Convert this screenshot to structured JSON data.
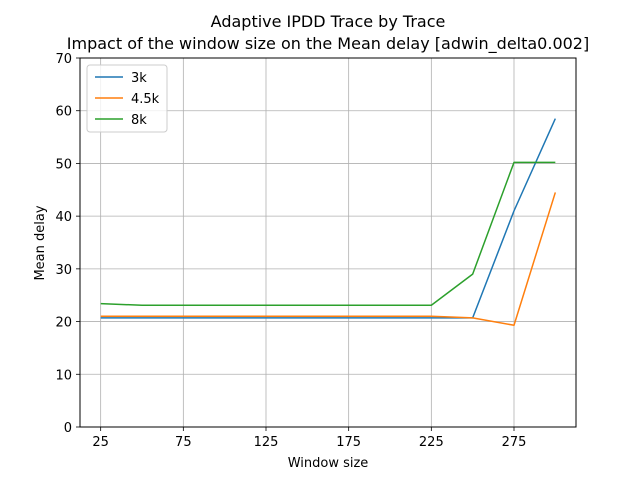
{
  "chart_data": {
    "type": "line",
    "title": "Adaptive IPDD Trace by Trace",
    "subtitle": "Impact of the window size on the Mean delay [adwin_delta0.002]",
    "xlabel": "Window size",
    "ylabel": "Mean delay",
    "xlim": [
      12.5,
      312.5
    ],
    "ylim": [
      0,
      70
    ],
    "xticks": [
      25,
      75,
      125,
      175,
      225,
      275
    ],
    "yticks": [
      0,
      10,
      20,
      30,
      40,
      50,
      60,
      70
    ],
    "grid": true,
    "legend_position": "top-left",
    "series": [
      {
        "name": "3k",
        "color": "#1f77b4",
        "x": [
          25,
          50,
          75,
          100,
          125,
          150,
          175,
          200,
          225,
          250,
          275,
          300
        ],
        "y": [
          20.7,
          20.7,
          20.7,
          20.7,
          20.7,
          20.7,
          20.7,
          20.7,
          20.7,
          20.7,
          41,
          58.5
        ]
      },
      {
        "name": "4.5k",
        "color": "#ff7f0e",
        "x": [
          25,
          50,
          75,
          100,
          125,
          150,
          175,
          200,
          225,
          250,
          275,
          300
        ],
        "y": [
          21,
          21,
          21,
          21,
          21,
          21,
          21,
          21,
          21,
          20.7,
          19.3,
          44.5
        ]
      },
      {
        "name": "8k",
        "color": "#2ca02c",
        "x": [
          25,
          50,
          75,
          100,
          125,
          150,
          175,
          200,
          225,
          250,
          275,
          300
        ],
        "y": [
          23.4,
          23.1,
          23.1,
          23.1,
          23.1,
          23.1,
          23.1,
          23.1,
          23.1,
          29,
          50.2,
          50.2
        ]
      }
    ]
  }
}
